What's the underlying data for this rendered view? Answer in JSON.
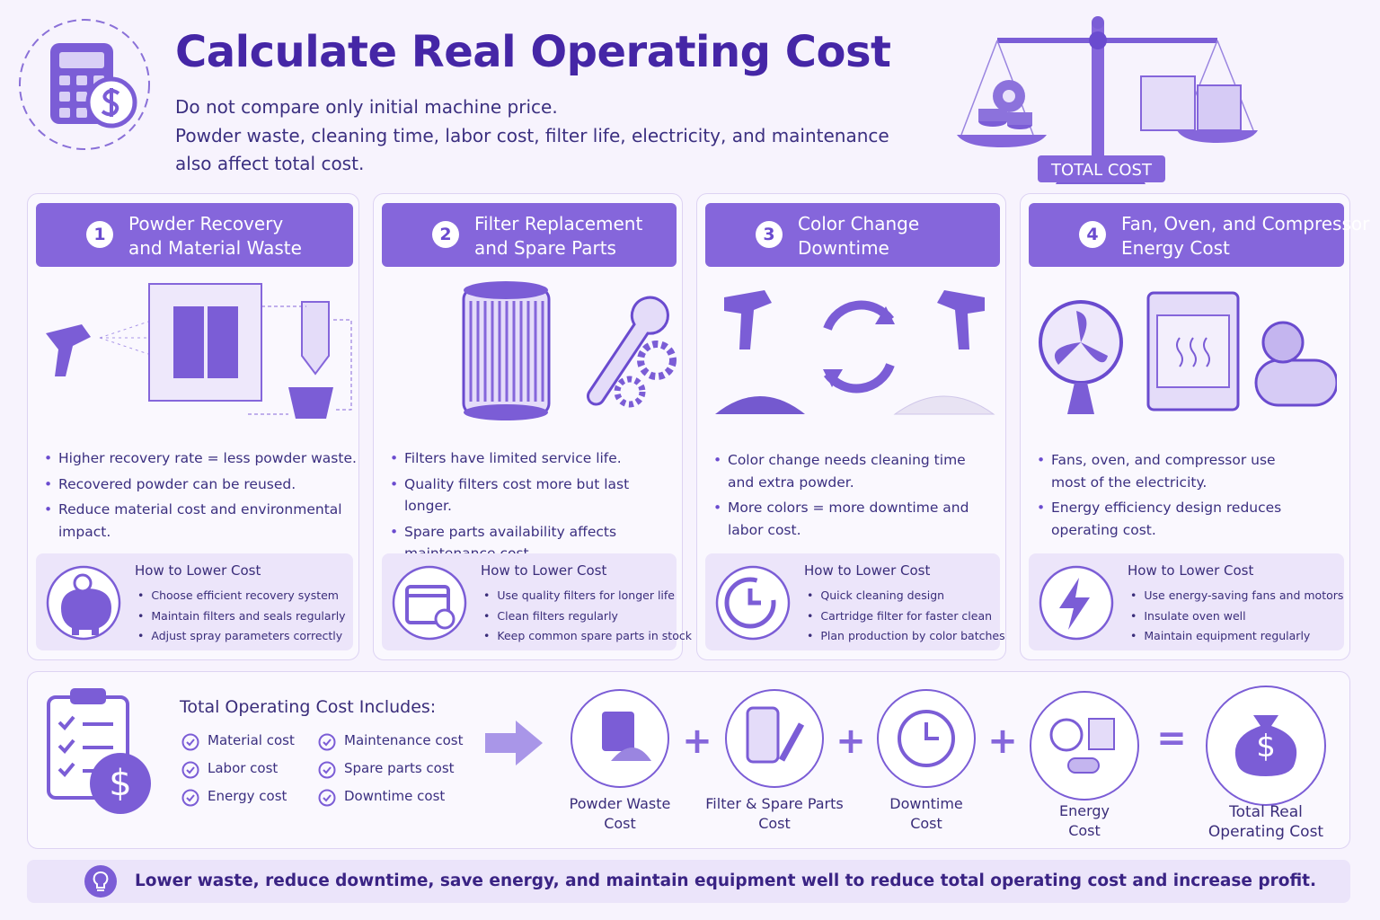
{
  "header": {
    "title": "Calculate Real Operating Cost",
    "lines": [
      "Do not compare only initial machine price.",
      "Powder waste, cleaning time, labor cost, filter life, electricity, and maintenance",
      "also affect total cost."
    ],
    "scale_label": "TOTAL COST"
  },
  "cards": [
    {
      "number": "1",
      "title_lines": [
        "Powder Recovery",
        "and Material Waste"
      ],
      "bullets": [
        "Higher recovery rate = less powder waste.",
        "Recovered powder can be reused.",
        "Reduce material cost and environmental impact."
      ],
      "tips_title": "How to Lower Cost",
      "tips": [
        "Choose efficient recovery system",
        "Maintain filters and seals regularly",
        "Adjust spray parameters correctly"
      ]
    },
    {
      "number": "2",
      "title_lines": [
        "Filter Replacement",
        "and Spare Parts"
      ],
      "bullets": [
        "Filters have limited service life.",
        "Quality filters cost more but last longer.",
        "Spare parts availability affects maintenance cost."
      ],
      "tips_title": "How to Lower Cost",
      "tips": [
        "Use quality filters for longer life",
        "Clean filters regularly",
        "Keep common spare parts in stock"
      ]
    },
    {
      "number": "3",
      "title_lines": [
        "Color Change",
        "Downtime"
      ],
      "bullets": [
        "Color change needs cleaning time and extra powder.",
        "More colors = more downtime and labor cost."
      ],
      "tips_title": "How to Lower Cost",
      "tips": [
        "Quick cleaning design",
        "Cartridge filter for faster clean",
        "Plan production by color batches"
      ]
    },
    {
      "number": "4",
      "title_lines": [
        "Fan, Oven, and Compressor",
        "Energy Cost"
      ],
      "bullets": [
        "Fans, oven, and compressor use most of the electricity.",
        "Energy efficiency design reduces operating cost."
      ],
      "tips_title": "How to Lower Cost",
      "tips": [
        "Use energy-saving fans and motors",
        "Insulate oven well",
        "Maintain equipment regularly"
      ]
    }
  ],
  "summary": {
    "title": "Total Operating Cost Includes:",
    "items": [
      "Material cost",
      "Labor cost",
      "Energy cost",
      "Maintenance cost",
      "Spare parts cost",
      "Downtime cost"
    ],
    "equation": [
      {
        "label_lines": [
          "Powder Waste",
          "Cost"
        ]
      },
      {
        "label_lines": [
          "Filter & Spare Parts",
          "Cost"
        ]
      },
      {
        "label_lines": [
          "Downtime",
          "Cost"
        ]
      },
      {
        "label_lines": [
          "Energy",
          "Cost"
        ]
      },
      {
        "label_lines": [
          "Total Real",
          "Operating Cost"
        ]
      }
    ],
    "operators": [
      "+",
      "+",
      "+",
      "="
    ]
  },
  "footer": "Lower waste, reduce downtime, save energy, and maintain equipment well to reduce total operating cost  and increase profit."
}
